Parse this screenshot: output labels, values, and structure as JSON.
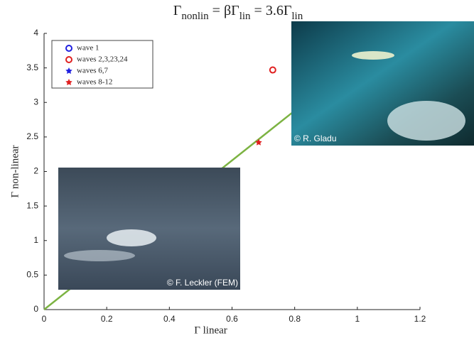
{
  "chart_data": {
    "type": "scatter",
    "title": [
      "Γ",
      "nonlin",
      " = βΓ",
      "lin",
      " = 3.6Γ",
      "lin"
    ],
    "x_label": "Γ linear",
    "y_label": "Γ non-linear",
    "xlim": [
      0,
      1.2
    ],
    "xticks": [
      0,
      0.2,
      0.4,
      0.6,
      0.8,
      1,
      1.2
    ],
    "ylim": [
      0,
      4
    ],
    "yticks": [
      0,
      0.5,
      1,
      1.5,
      2,
      2.5,
      3,
      3.5,
      4
    ],
    "legend": "upper left",
    "fit_line": {
      "color": "#7cb342",
      "x": [
        0,
        0.8
      ],
      "values": [
        0,
        2.88
      ]
    },
    "series": [
      {
        "name": "wave 1",
        "color": "#1f1fe0",
        "marker": "open-circle",
        "x": [],
        "values": []
      },
      {
        "name": "waves 2,3,23,24",
        "color": "#e02020",
        "marker": "open-circle",
        "x": [
          0.73
        ],
        "values": [
          3.47
        ]
      },
      {
        "name": "waves 6,7",
        "color": "#1f1fe0",
        "marker": "star",
        "x": [],
        "values": []
      },
      {
        "name": "waves 8-12",
        "color": "#e02020",
        "marker": "star",
        "x": [
          0.685
        ],
        "values": [
          2.42
        ]
      }
    ],
    "photos": [
      "© R. Gladu",
      "© F. Leckler (FEM)"
    ]
  }
}
